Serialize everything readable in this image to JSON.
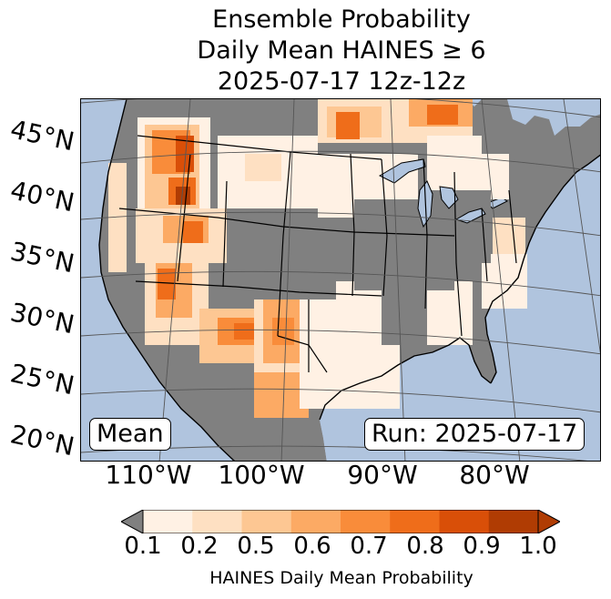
{
  "title": {
    "line1": "Ensemble Probability",
    "line2": "Daily Mean HAINES ≥ 6",
    "line3": "2025-07-17 12z-12z"
  },
  "map": {
    "lat_labels": [
      "45°N",
      "40°N",
      "35°N",
      "30°N",
      "25°N",
      "20°N"
    ],
    "lon_labels": [
      "110°W",
      "100°W",
      "90°W",
      "80°W"
    ],
    "stat_label": "Mean",
    "run_label": "Run: 2025-07-17",
    "colors": {
      "ocean": "#b0c4de",
      "no_data_gray": "#808080",
      "gridline": "#555555"
    }
  },
  "colorbar": {
    "caption": "HAINES Daily Mean Probability",
    "tick_labels": [
      "0.1",
      "0.2",
      "0.5",
      "0.6",
      "0.7",
      "0.8",
      "0.9",
      "1.0"
    ],
    "under_color": "#808080",
    "colors": [
      "#fff1e4",
      "#fee0c2",
      "#fdc793",
      "#fcaa64",
      "#f98c3a",
      "#ef6d1a",
      "#d94f08",
      "#b03c03"
    ],
    "extend": "both"
  }
}
